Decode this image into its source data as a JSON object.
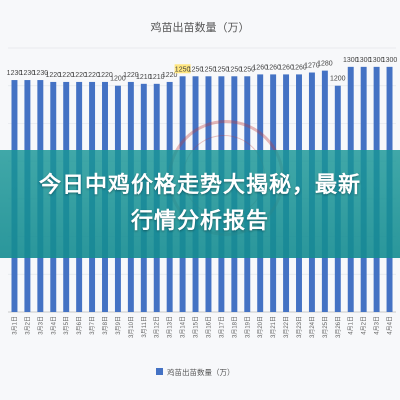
{
  "headline": "今日中鸡价格走势大揭秘，最新行情分析报告",
  "colors": {
    "bar": "#4472c4",
    "banner": "#1a9696",
    "highlight": "#ffe680"
  },
  "chart_data": {
    "type": "bar",
    "title": "鸡苗出苗数量（万）",
    "legend": "鸡苗出苗数量（万）",
    "legend_position": "bottom",
    "grid": true,
    "ylim": [
      0,
      1400
    ],
    "values": [
      1230,
      1230,
      1230,
      1220,
      1220,
      1220,
      1220,
      1220,
      1200,
      1220,
      1210,
      1210,
      1220,
      1250,
      1250,
      1250,
      1250,
      1250,
      1250,
      1260,
      1260,
      1260,
      1260,
      1270,
      1280,
      1200,
      1300,
      1300,
      1300,
      1300
    ],
    "categories": [
      "3月1日",
      "3月2日",
      "3月3日",
      "3月4日",
      "3月5日",
      "3月6日",
      "3月7日",
      "3月8日",
      "3月9日",
      "3月10日",
      "3月11日",
      "3月12日",
      "3月13日",
      "3月14日",
      "3月15日",
      "3月16日",
      "3月17日",
      "3月18日",
      "3月19日",
      "3月20日",
      "3月21日",
      "3月22日",
      "3月23日",
      "3月24日",
      "3月25日",
      "3月26日",
      "4月1日",
      "4月2日",
      "4月3日",
      "4月4日"
    ],
    "highlight_index": 13
  }
}
